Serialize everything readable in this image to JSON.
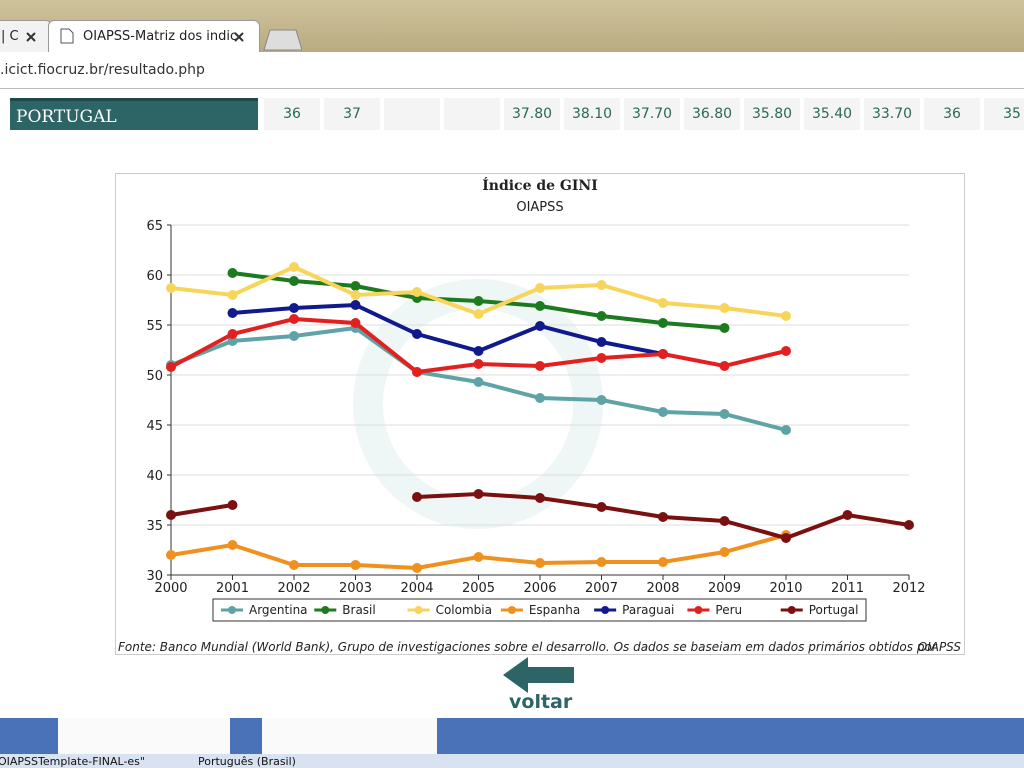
{
  "browser": {
    "tabs": [
      "| C",
      "OIAPSS-Matriz dos indic"
    ],
    "url": ".icict.fiocruz.br/resultado.php"
  },
  "table": {
    "rows": [
      [
        "PORTUGAL",
        "36",
        "37",
        null,
        null,
        "37.80",
        "38.10",
        "37.70",
        "36.80",
        "35.80",
        "35.40",
        "33.70",
        "36",
        "35"
      ]
    ]
  },
  "chart_data": {
    "type": "line",
    "title": "Índice de GINI",
    "subtitle": "OIAPSS",
    "x": [
      2000,
      2001,
      2002,
      2003,
      2004,
      2005,
      2006,
      2007,
      2008,
      2009,
      2010,
      2011,
      2012
    ],
    "xlim": [
      2000,
      2012
    ],
    "xticks": [
      2000,
      2001,
      2002,
      2003,
      2004,
      2005,
      2006,
      2007,
      2008,
      2009,
      2010,
      2011,
      2012
    ],
    "ylim": [
      30,
      65
    ],
    "yticks": [
      30,
      35,
      40,
      45,
      50,
      55,
      60,
      65
    ],
    "grid": true,
    "legend": "bottom",
    "series": [
      {
        "name": "Argentina",
        "color": "#5fa3a6",
        "values": [
          51.0,
          53.4,
          53.9,
          54.7,
          50.3,
          49.3,
          47.7,
          47.5,
          46.3,
          46.1,
          44.5,
          null,
          null
        ]
      },
      {
        "name": "Brasil",
        "color": "#1e7a1e",
        "values": [
          null,
          60.2,
          59.4,
          58.9,
          57.7,
          57.4,
          56.9,
          55.9,
          55.2,
          54.7,
          null,
          null,
          null
        ]
      },
      {
        "name": "Colombia",
        "color": "#f7d55a",
        "values": [
          58.7,
          58.0,
          60.8,
          58.0,
          58.3,
          56.1,
          58.7,
          59.0,
          57.2,
          56.7,
          55.9,
          null,
          null
        ]
      },
      {
        "name": "Espanha",
        "color": "#f0901e",
        "values": [
          32.0,
          33.0,
          31.0,
          31.0,
          30.7,
          31.8,
          31.2,
          31.3,
          31.3,
          32.3,
          34.0,
          null,
          null
        ]
      },
      {
        "name": "Paraguai",
        "color": "#101a8c",
        "values": [
          null,
          56.2,
          56.7,
          57.0,
          54.1,
          52.4,
          54.9,
          53.3,
          52.1,
          null,
          null,
          null,
          null
        ]
      },
      {
        "name": "Peru",
        "color": "#e32020",
        "values": [
          50.8,
          54.1,
          55.6,
          55.2,
          50.3,
          51.1,
          50.9,
          51.7,
          52.1,
          50.9,
          52.4,
          null,
          null
        ]
      },
      {
        "name": "Portugal",
        "color": "#7a1010",
        "values": [
          36,
          37,
          null,
          null,
          37.8,
          38.1,
          37.7,
          36.8,
          35.8,
          35.4,
          33.7,
          36,
          35
        ]
      }
    ]
  },
  "footnote": "Fonte: Banco Mundial (World Bank), Grupo de investigaciones sobre el desarrollo. Os dados se baseiam em dados primários obtidos por",
  "credit": "OIAPSS",
  "button": "voltar",
  "taskbar": [
    "OIAPSSTemplate-FINAL-es\"",
    "Português (Brasil)"
  ]
}
